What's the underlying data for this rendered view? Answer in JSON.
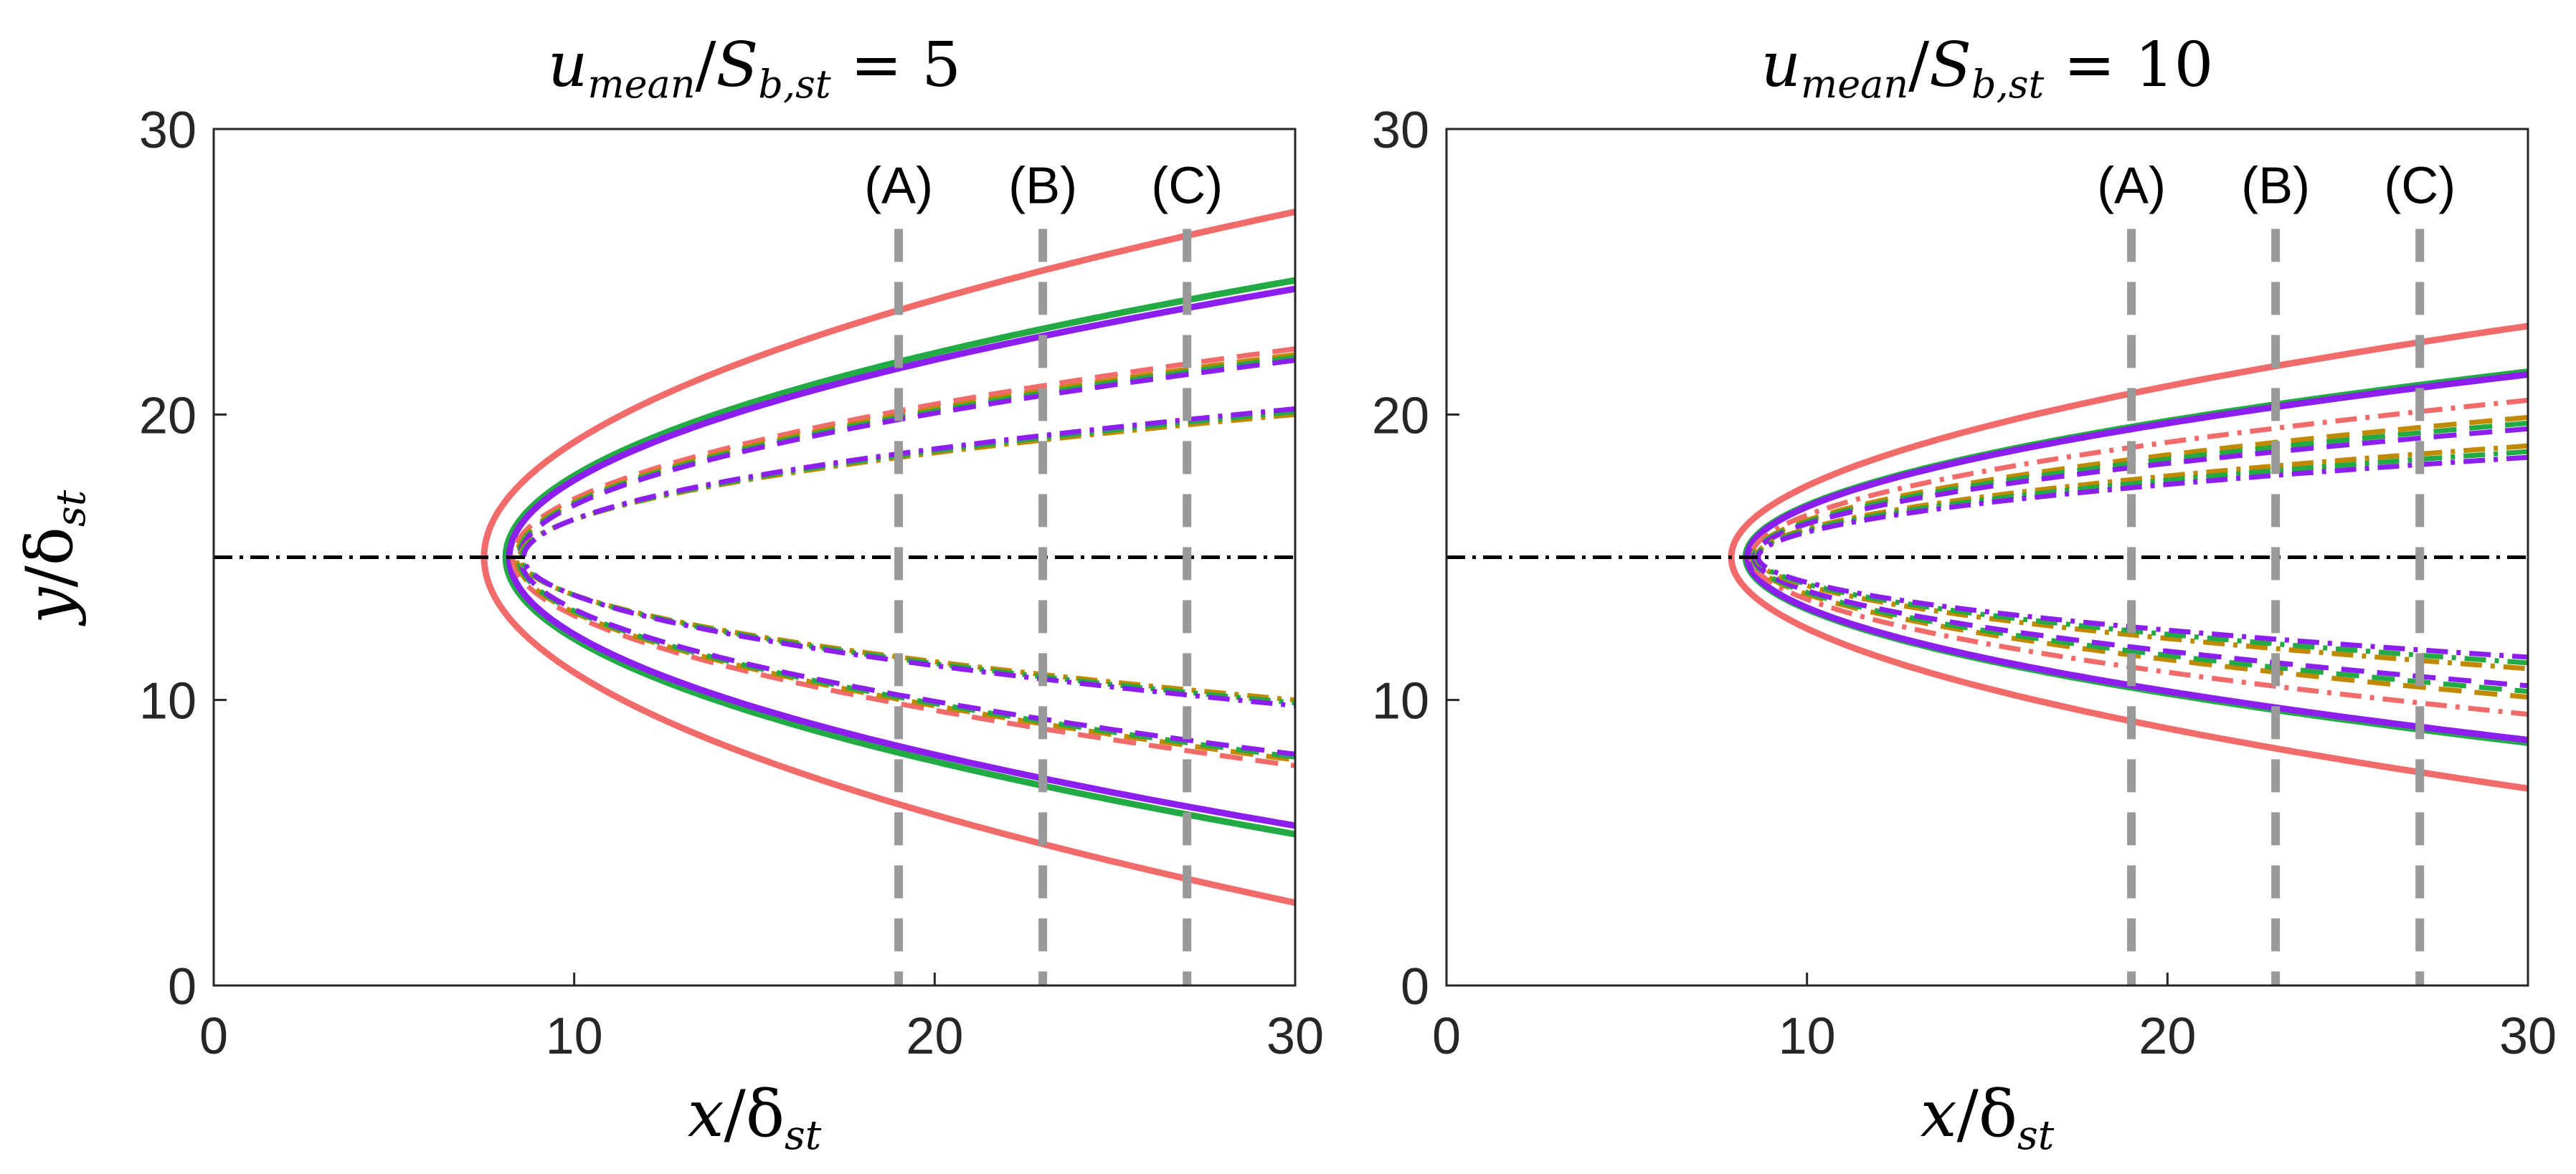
{
  "chart_data": [
    {
      "type": "line",
      "title": "u_mean/S_b,st = 5",
      "title_parts": {
        "u": "u",
        "u_sub": "mean",
        "slash": "/",
        "s": "S",
        "s_sub": "b,st",
        "eq": " = 5"
      },
      "xlabel": "x/δ_st",
      "xlabel_parts": {
        "x": "x",
        "slash": "/δ",
        "sub": "st"
      },
      "ylabel": "y/δ_st",
      "ylabel_parts": {
        "y": "y",
        "slash": "/δ",
        "sub": "st"
      },
      "xlim": [
        0,
        30
      ],
      "ylim": [
        0,
        30
      ],
      "xticks": [
        0,
        10,
        20,
        30
      ],
      "yticks": [
        0,
        10,
        20,
        30
      ],
      "x_tick_labels": [
        "0",
        "10",
        "20",
        "30"
      ],
      "y_tick_labels": [
        "0",
        "10",
        "20",
        "30"
      ],
      "centerline_y": 15,
      "sections": [
        {
          "label": "(A)",
          "x": 19
        },
        {
          "label": "(B)",
          "x": 23
        },
        {
          "label": "(C)",
          "x": 27
        }
      ],
      "curves": [
        {
          "name": "solid-salmon",
          "color": "#f26b6b",
          "style": "solid",
          "x_tip": 7.5,
          "half_width_at_30": 12.1
        },
        {
          "name": "solid-green",
          "color": "#22aa44",
          "style": "solid",
          "x_tip": 8.1,
          "half_width_at_30": 9.7
        },
        {
          "name": "solid-violet",
          "color": "#8c1ef0",
          "style": "solid",
          "x_tip": 8.2,
          "half_width_at_30": 9.4
        },
        {
          "name": "dashed-salmon",
          "color": "#f26b6b",
          "style": "dashed",
          "x_tip": 8.3,
          "half_width_at_30": 7.3
        },
        {
          "name": "dashed-olive",
          "color": "#c08a00",
          "style": "dashed",
          "x_tip": 8.4,
          "half_width_at_30": 7.1
        },
        {
          "name": "dashed-green",
          "color": "#22aa44",
          "style": "dashed",
          "x_tip": 8.45,
          "half_width_at_30": 7.0
        },
        {
          "name": "dashed-violet",
          "color": "#8c1ef0",
          "style": "dashed",
          "x_tip": 8.5,
          "half_width_at_30": 6.9
        },
        {
          "name": "dashdot-olive",
          "color": "#c08a00",
          "style": "dashdot",
          "x_tip": 8.5,
          "half_width_at_30": 5.0
        },
        {
          "name": "dashdot-green",
          "color": "#22aa44",
          "style": "dashdot",
          "x_tip": 8.55,
          "half_width_at_30": 5.1
        },
        {
          "name": "dashdot-violet",
          "color": "#8c1ef0",
          "style": "dashdot",
          "x_tip": 8.6,
          "half_width_at_30": 5.2
        }
      ]
    },
    {
      "type": "line",
      "title": "u_mean/S_b,st = 10",
      "title_parts": {
        "u": "u",
        "u_sub": "mean",
        "slash": "/",
        "s": "S",
        "s_sub": "b,st",
        "eq": " = 10"
      },
      "xlabel": "x/δ_st",
      "xlabel_parts": {
        "x": "x",
        "slash": "/δ",
        "sub": "st"
      },
      "ylabel": "",
      "xlim": [
        0,
        30
      ],
      "ylim": [
        0,
        30
      ],
      "xticks": [
        0,
        10,
        20,
        30
      ],
      "yticks": [
        0,
        10,
        20,
        30
      ],
      "x_tick_labels": [
        "0",
        "10",
        "20",
        "30"
      ],
      "y_tick_labels": [
        "0",
        "10",
        "20",
        "30"
      ],
      "centerline_y": 15,
      "sections": [
        {
          "label": "(A)",
          "x": 19
        },
        {
          "label": "(B)",
          "x": 23
        },
        {
          "label": "(C)",
          "x": 27
        }
      ],
      "curves": [
        {
          "name": "solid-salmon",
          "color": "#f26b6b",
          "style": "solid",
          "x_tip": 7.9,
          "half_width_at_30": 8.1
        },
        {
          "name": "solid-green",
          "color": "#22aa44",
          "style": "solid",
          "x_tip": 8.3,
          "half_width_at_30": 6.5
        },
        {
          "name": "solid-violet",
          "color": "#8c1ef0",
          "style": "solid",
          "x_tip": 8.35,
          "half_width_at_30": 6.4
        },
        {
          "name": "dashdot-salmon",
          "color": "#f26b6b",
          "style": "dashdot",
          "x_tip": 8.45,
          "half_width_at_30": 5.5
        },
        {
          "name": "dashed-olive",
          "color": "#c08a00",
          "style": "dashed",
          "x_tip": 8.5,
          "half_width_at_30": 4.9
        },
        {
          "name": "dashed-green",
          "color": "#22aa44",
          "style": "dashed",
          "x_tip": 8.52,
          "half_width_at_30": 4.7
        },
        {
          "name": "dashed-violet",
          "color": "#8c1ef0",
          "style": "dashed",
          "x_tip": 8.55,
          "half_width_at_30": 4.5
        },
        {
          "name": "dashdot-olive",
          "color": "#c08a00",
          "style": "dashdot",
          "x_tip": 8.6,
          "half_width_at_30": 3.9
        },
        {
          "name": "dashdot-green",
          "color": "#22aa44",
          "style": "dashdot",
          "x_tip": 8.62,
          "half_width_at_30": 3.7
        },
        {
          "name": "dashdot-violet",
          "color": "#8c1ef0",
          "style": "dashdot",
          "x_tip": 8.65,
          "half_width_at_30": 3.5
        }
      ]
    }
  ]
}
